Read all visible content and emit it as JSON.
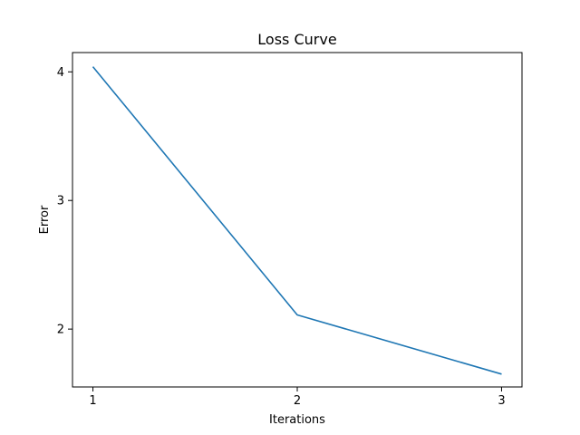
{
  "chart_data": {
    "type": "line",
    "title": "Loss Curve",
    "xlabel": "Iterations",
    "ylabel": "Error",
    "x": [
      1,
      2,
      3
    ],
    "series": [
      {
        "values": [
          4.04,
          2.11,
          1.65
        ],
        "color": "#1f77b4"
      }
    ],
    "xlim": [
      0.9,
      3.1
    ],
    "ylim": [
      1.55,
      4.15
    ],
    "xticks": [
      1,
      2,
      3
    ],
    "xtick_labels": [
      "1",
      "2",
      "3"
    ],
    "yticks": [
      2,
      3,
      4
    ],
    "ytick_labels": [
      "2",
      "3",
      "4"
    ],
    "grid": false,
    "legend": "none"
  }
}
